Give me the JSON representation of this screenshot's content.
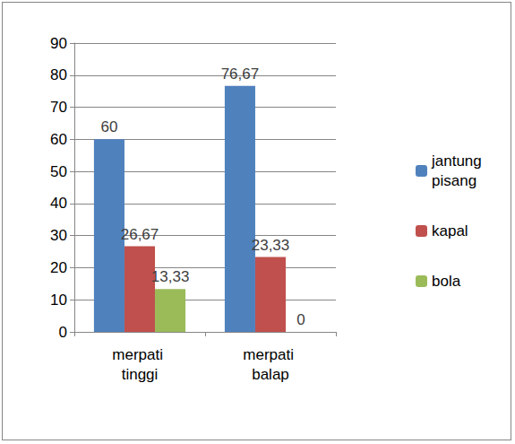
{
  "chart_data": {
    "type": "bar",
    "categories": [
      "merpati tinggi",
      "merpati balap"
    ],
    "series": [
      {
        "name": "jantung pisang",
        "color": "#4f81bd",
        "values": [
          60,
          76.67
        ],
        "value_labels": [
          "60",
          "76,67"
        ]
      },
      {
        "name": "kapal",
        "color": "#c0504d",
        "values": [
          26.67,
          23.33
        ],
        "value_labels": [
          "26,67",
          "23,33"
        ]
      },
      {
        "name": "bola",
        "color": "#9bbb59",
        "values": [
          13.33,
          0
        ],
        "value_labels": [
          "13,33",
          "0"
        ]
      }
    ],
    "ylim": [
      0,
      90
    ],
    "yticks": [
      0,
      10,
      20,
      30,
      40,
      50,
      60,
      70,
      80,
      90
    ],
    "grid": true,
    "legend": "right",
    "data_labels": true
  }
}
